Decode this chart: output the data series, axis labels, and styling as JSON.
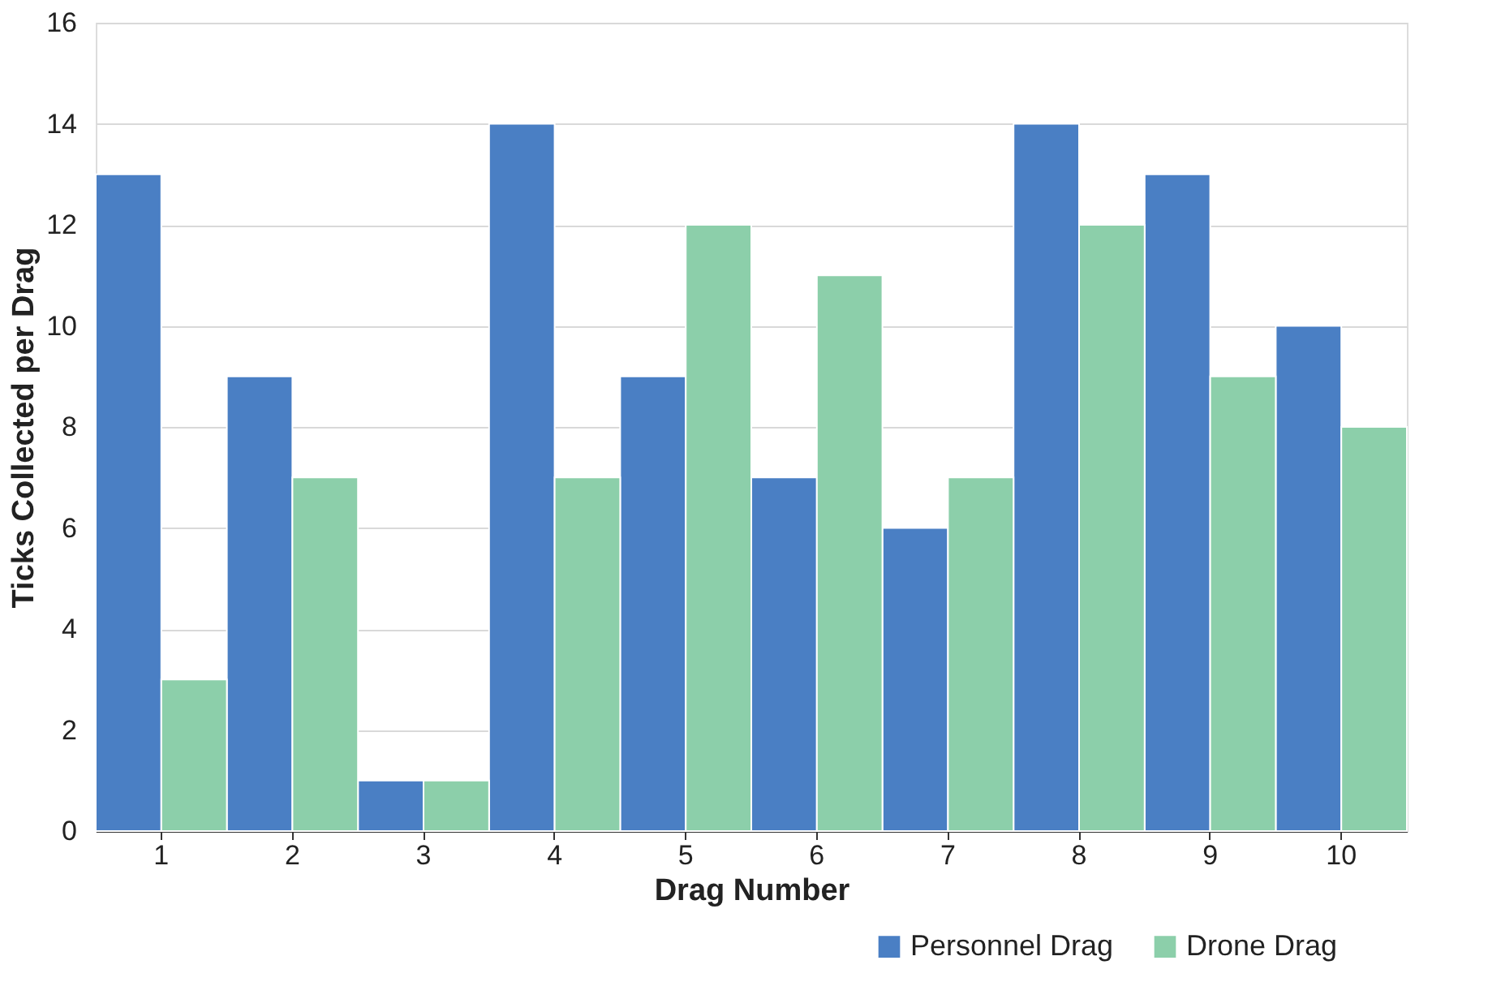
{
  "chart_data": {
    "type": "bar",
    "xlabel": "Drag Number",
    "ylabel": "Ticks Collected per Drag",
    "categories": [
      "1",
      "2",
      "3",
      "4",
      "5",
      "6",
      "7",
      "8",
      "9",
      "10"
    ],
    "series": [
      {
        "name": "Personnel Drag",
        "color": "#4a7fc4",
        "values": [
          13,
          9,
          1,
          14,
          9,
          7,
          6,
          14,
          13,
          10
        ]
      },
      {
        "name": "Drone Drag",
        "color": "#8ccfaa",
        "values": [
          3,
          7,
          1,
          7,
          12,
          11,
          7,
          12,
          9,
          8
        ]
      }
    ],
    "ylim": [
      0,
      16
    ],
    "yticks": [
      0,
      2,
      4,
      6,
      8,
      10,
      12,
      14,
      16
    ],
    "grid": "y",
    "legend": "bottom right"
  }
}
